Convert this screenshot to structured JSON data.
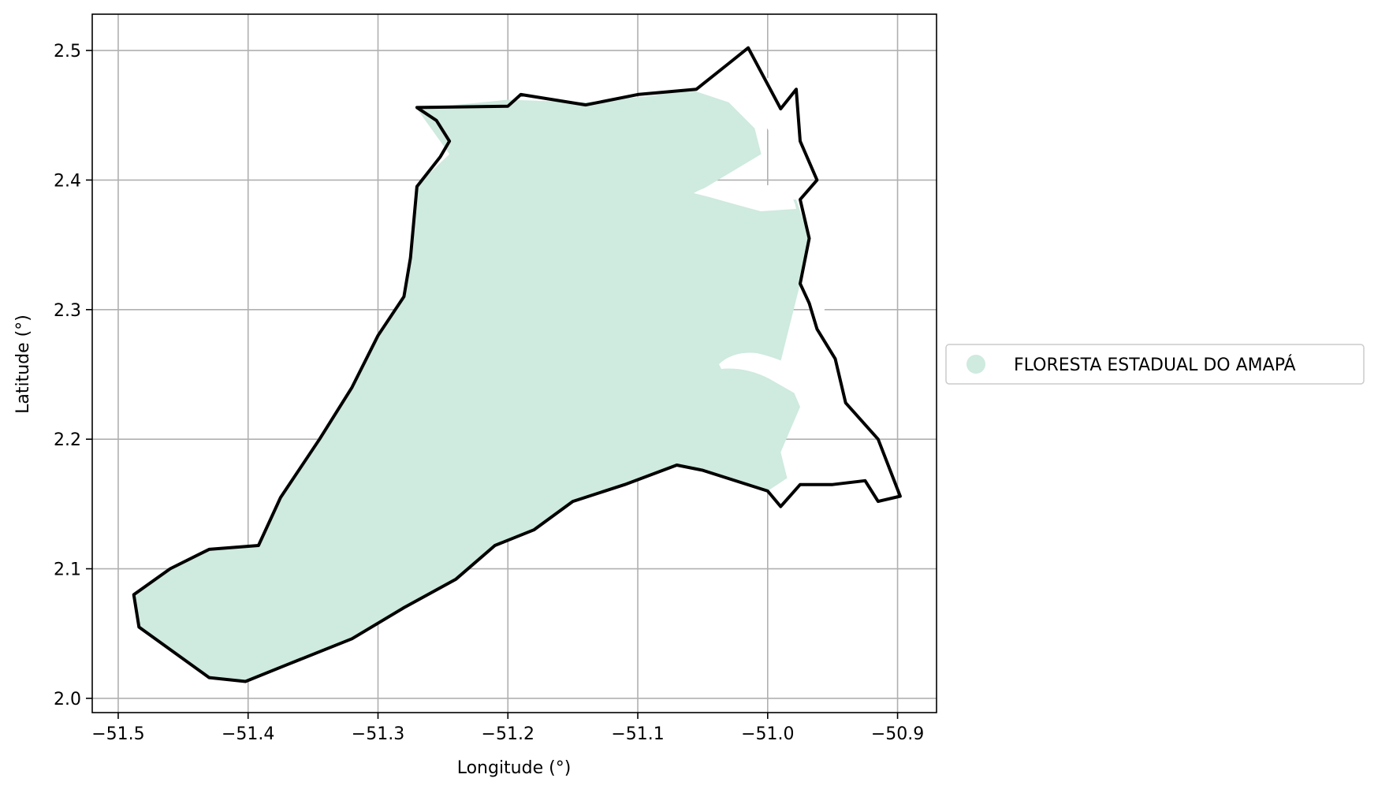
{
  "chart_data": {
    "type": "map",
    "xlabel": "Longitude (°)",
    "ylabel": "Latitude (°)",
    "xlim": [
      -51.52,
      -50.87
    ],
    "ylim": [
      1.989,
      2.528
    ],
    "grid": true,
    "xticks": [
      {
        "value": -51.5,
        "label": "−51.5"
      },
      {
        "value": -51.4,
        "label": "−51.4"
      },
      {
        "value": -51.3,
        "label": "−51.3"
      },
      {
        "value": -51.2,
        "label": "−51.2"
      },
      {
        "value": -51.1,
        "label": "−51.1"
      },
      {
        "value": -51.0,
        "label": "−51.0"
      },
      {
        "value": -50.9,
        "label": "−50.9"
      }
    ],
    "yticks": [
      {
        "value": 2.0,
        "label": "2.0"
      },
      {
        "value": 2.1,
        "label": "2.1"
      },
      {
        "value": 2.2,
        "label": "2.2"
      },
      {
        "value": 2.3,
        "label": "2.3"
      },
      {
        "value": 2.4,
        "label": "2.4"
      },
      {
        "value": 2.5,
        "label": "2.5"
      }
    ],
    "legend": {
      "placement": "right",
      "entries": [
        {
          "label": "FLORESTA ESTADUAL DO AMAPÁ",
          "color": "#cfeadf"
        }
      ]
    },
    "layers": [
      {
        "kind": "polygon",
        "fill": "#cfeadf",
        "coords": [
          [
            -51.484,
            2.055
          ],
          [
            -51.43,
            2.016
          ],
          [
            -51.402,
            2.013
          ],
          [
            -51.37,
            2.026
          ],
          [
            -51.32,
            2.046
          ],
          [
            -51.28,
            2.07
          ],
          [
            -51.24,
            2.092
          ],
          [
            -51.21,
            2.118
          ],
          [
            -51.18,
            2.13
          ],
          [
            -51.15,
            2.152
          ],
          [
            -51.11,
            2.165
          ],
          [
            -51.07,
            2.18
          ],
          [
            -51.05,
            2.176
          ],
          [
            -51.0,
            2.16
          ],
          [
            -50.985,
            2.17
          ],
          [
            -50.99,
            2.19
          ],
          [
            -50.975,
            2.225
          ],
          [
            -50.99,
            2.26
          ],
          [
            -50.975,
            2.32
          ],
          [
            -50.968,
            2.355
          ],
          [
            -50.978,
            2.385
          ],
          [
            -51.005,
            2.385
          ],
          [
            -51.025,
            2.384
          ],
          [
            -51.055,
            2.39
          ],
          [
            -51.005,
            2.42
          ],
          [
            -51.01,
            2.44
          ],
          [
            -51.03,
            2.46
          ],
          [
            -51.06,
            2.47
          ],
          [
            -51.09,
            2.465
          ],
          [
            -51.14,
            2.46
          ],
          [
            -51.2,
            2.462
          ],
          [
            -51.27,
            2.455
          ],
          [
            -51.245,
            2.42
          ],
          [
            -51.27,
            2.396
          ],
          [
            -51.275,
            2.34
          ],
          [
            -51.28,
            2.31
          ],
          [
            -51.3,
            2.28
          ],
          [
            -51.32,
            2.24
          ],
          [
            -51.345,
            2.2
          ],
          [
            -51.375,
            2.155
          ],
          [
            -51.392,
            2.118
          ],
          [
            -51.43,
            2.115
          ],
          [
            -51.46,
            2.1
          ],
          [
            -51.488,
            2.08
          ]
        ]
      },
      {
        "kind": "outline",
        "stroke": "#000000",
        "coords": [
          [
            -51.484,
            2.055
          ],
          [
            -51.43,
            2.016
          ],
          [
            -51.402,
            2.013
          ],
          [
            -51.37,
            2.026
          ],
          [
            -51.32,
            2.046
          ],
          [
            -51.28,
            2.07
          ],
          [
            -51.24,
            2.092
          ],
          [
            -51.21,
            2.118
          ],
          [
            -51.18,
            2.13
          ],
          [
            -51.15,
            2.152
          ],
          [
            -51.11,
            2.165
          ],
          [
            -51.07,
            2.18
          ],
          [
            -51.05,
            2.176
          ],
          [
            -51.0,
            2.16
          ],
          [
            -50.99,
            2.148
          ],
          [
            -50.975,
            2.165
          ],
          [
            -50.95,
            2.165
          ],
          [
            -50.925,
            2.168
          ],
          [
            -50.915,
            2.152
          ],
          [
            -50.898,
            2.156
          ],
          [
            -50.915,
            2.2
          ],
          [
            -50.94,
            2.228
          ],
          [
            -50.948,
            2.262
          ],
          [
            -50.962,
            2.285
          ],
          [
            -50.968,
            2.305
          ],
          [
            -50.975,
            2.32
          ],
          [
            -50.968,
            2.355
          ],
          [
            -50.975,
            2.385
          ],
          [
            -50.962,
            2.4
          ],
          [
            -50.975,
            2.43
          ],
          [
            -50.978,
            2.47
          ],
          [
            -50.99,
            2.455
          ],
          [
            -51.015,
            2.502
          ],
          [
            -51.03,
            2.49
          ],
          [
            -51.055,
            2.47
          ],
          [
            -51.1,
            2.466
          ],
          [
            -51.14,
            2.458
          ],
          [
            -51.19,
            2.466
          ],
          [
            -51.2,
            2.457
          ],
          [
            -51.27,
            2.456
          ],
          [
            -51.255,
            2.446
          ],
          [
            -51.245,
            2.43
          ],
          [
            -51.252,
            2.418
          ],
          [
            -51.27,
            2.395
          ],
          [
            -51.275,
            2.34
          ],
          [
            -51.28,
            2.31
          ],
          [
            -51.3,
            2.28
          ],
          [
            -51.32,
            2.24
          ],
          [
            -51.345,
            2.2
          ],
          [
            -51.375,
            2.155
          ],
          [
            -51.392,
            2.118
          ],
          [
            -51.43,
            2.115
          ],
          [
            -51.46,
            2.1
          ],
          [
            -51.488,
            2.08
          ],
          [
            -51.484,
            2.055
          ]
        ]
      }
    ]
  }
}
